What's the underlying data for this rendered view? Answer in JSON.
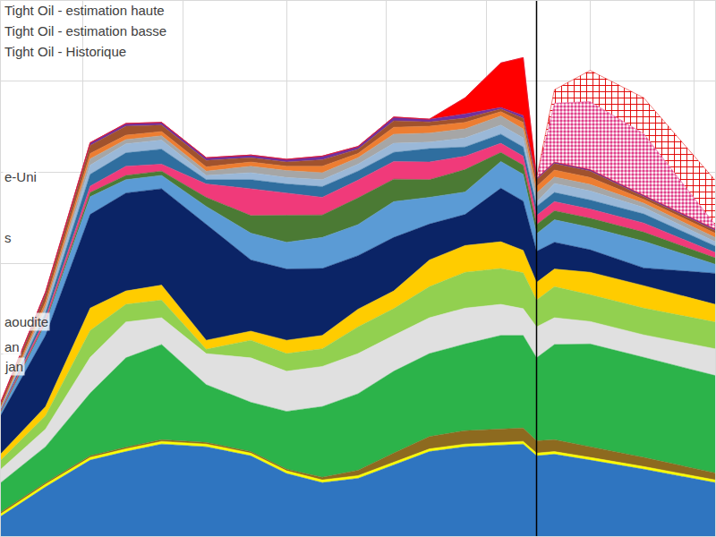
{
  "chart_data": {
    "type": "area",
    "stacked": true,
    "grid": true,
    "tick_labels": false,
    "x": [
      0,
      6.25,
      12.5,
      17.5,
      22.5,
      28.75,
      35,
      40,
      45,
      50,
      55,
      60,
      65,
      70,
      73.125,
      75,
      77.5,
      82.5,
      90,
      100
    ],
    "xlim": [
      0,
      100
    ],
    "xticks": [
      11.5,
      25.5,
      40,
      54,
      68,
      82.5,
      97
    ],
    "ylim": [
      0,
      100
    ],
    "yticks": [
      0,
      17,
      34,
      51,
      68,
      85
    ],
    "vline": 75,
    "annotations": [
      "e-Uni",
      "s",
      "aoudite",
      "an",
      "jan"
    ],
    "series": [
      {
        "color": "#2f75c0",
        "values": [
          3.7,
          9.2,
          14.2,
          15.8,
          17.2,
          16.7,
          15.0,
          11.7,
          10.0,
          10.8,
          13.3,
          15.8,
          16.7,
          17.0,
          17.2,
          15.0,
          15.3,
          14.2,
          12.5,
          10.0
        ]
      },
      {
        "color": "#ffff00",
        "values": [
          0.5,
          0.5,
          0.5,
          0.5,
          0.5,
          0.5,
          0.5,
          0.5,
          0.5,
          0.5,
          0.5,
          0.5,
          0.5,
          0.5,
          0.5,
          0.5,
          0.5,
          0.5,
          0.5,
          0.5
        ]
      },
      {
        "color": "#8d6a1f",
        "values": [
          0.3,
          0.3,
          0.3,
          0.3,
          0.3,
          0.3,
          0.3,
          0.3,
          0.5,
          1.0,
          1.7,
          2.3,
          2.5,
          2.5,
          2.5,
          2.3,
          2.2,
          2.0,
          1.7,
          1.3
        ]
      },
      {
        "color": "#2cb34a",
        "values": [
          5.5,
          6.7,
          11.7,
          16.7,
          17.8,
          10.8,
          9.2,
          10.8,
          13.2,
          14.3,
          15.3,
          15.5,
          16.2,
          17.5,
          17.3,
          15.5,
          17.8,
          19.2,
          18.7,
          18.2
        ]
      },
      {
        "color": "#e0e0e0",
        "values": [
          2.5,
          3.3,
          6.7,
          6.7,
          5.0,
          5.8,
          8.3,
          7.5,
          7.5,
          7.5,
          6.7,
          6.7,
          6.7,
          5.8,
          5.0,
          5.8,
          5.0,
          4.2,
          4.2,
          5.0
        ]
      },
      {
        "color": "#92d050",
        "values": [
          1.7,
          2.5,
          5.0,
          3.3,
          3.3,
          0.8,
          3.3,
          3.3,
          3.3,
          5.0,
          5.0,
          5.8,
          6.7,
          6.7,
          6.7,
          5.0,
          5.8,
          5.0,
          5.0,
          5.0
        ]
      },
      {
        "color": "#ffcc00",
        "values": [
          1.2,
          1.7,
          4.2,
          2.5,
          2.8,
          1.7,
          1.7,
          2.5,
          2.5,
          3.3,
          3.3,
          5.0,
          5.0,
          5.0,
          4.2,
          3.3,
          3.3,
          4.2,
          4.2,
          3.3
        ]
      },
      {
        "color": "#0b2466",
        "values": [
          7.2,
          13.3,
          17.5,
          18.3,
          18.0,
          21.7,
          13.3,
          13.3,
          12.5,
          10.0,
          10.0,
          6.7,
          5.8,
          10.0,
          9.2,
          5.8,
          5.0,
          4.2,
          3.3,
          5.8
        ]
      },
      {
        "color": "#5b9bd5",
        "values": [
          0.5,
          2.2,
          3.3,
          2.5,
          2.5,
          3.3,
          5.0,
          5.0,
          5.8,
          5.8,
          6.7,
          5.0,
          4.2,
          5.0,
          5.0,
          3.3,
          4.2,
          4.2,
          5.0,
          1.7
        ]
      },
      {
        "color": "#4b7a34",
        "values": [
          0.2,
          0.3,
          0.8,
          0.8,
          0.8,
          1.7,
          3.3,
          5.0,
          4.2,
          5.0,
          4.2,
          3.3,
          4.2,
          1.7,
          1.7,
          1.7,
          1.7,
          1.7,
          1.7,
          1.2
        ]
      },
      {
        "color": "#f03a7a",
        "values": [
          0.2,
          0.7,
          1.2,
          1.7,
          1.3,
          2.5,
          5.0,
          4.2,
          3.3,
          3.3,
          3.3,
          3.3,
          2.5,
          1.7,
          1.7,
          1.7,
          1.7,
          1.7,
          1.7,
          1.0
        ]
      },
      {
        "color": "#2f6e9f",
        "values": [
          0.2,
          1.0,
          2.2,
          2.5,
          2.8,
          0.8,
          1.7,
          1.7,
          2.0,
          1.7,
          1.7,
          2.5,
          1.7,
          1.7,
          1.7,
          1.7,
          1.7,
          1.7,
          1.7,
          1.2
        ]
      },
      {
        "color": "#9ab8d8",
        "values": [
          0.2,
          0.7,
          1.7,
          1.7,
          1.7,
          0.8,
          1.3,
          1.2,
          1.3,
          1.3,
          1.7,
          1.2,
          1.7,
          1.7,
          1.7,
          0.8,
          1.7,
          1.7,
          1.2,
          0.8
        ]
      },
      {
        "color": "#a6a6a6",
        "values": [
          0.2,
          0.7,
          1.2,
          0.8,
          0.8,
          0.8,
          1.2,
          1.3,
          1.3,
          1.2,
          1.7,
          1.7,
          1.7,
          1.7,
          1.7,
          1.7,
          1.2,
          1.2,
          0.8,
          0.8
        ]
      },
      {
        "color": "#ed7d31",
        "values": [
          0.2,
          0.7,
          1.0,
          0.8,
          0.8,
          0.8,
          0.8,
          0.8,
          1.2,
          0.8,
          1.3,
          1.3,
          1.2,
          0.8,
          1.2,
          1.2,
          1.3,
          1.3,
          0.7,
          0.8
        ]
      },
      {
        "color": "#a0522d",
        "values": [
          0.5,
          1.3,
          1.5,
          1.7,
          1.2,
          1.2,
          0.8,
          0.8,
          1.2,
          0.8,
          1.2,
          0.8,
          0.8,
          0.5,
          0.8,
          1.3,
          1.2,
          1.2,
          0.5,
          0.5
        ]
      },
      {
        "color": "#7030a0",
        "values": [
          0.3,
          0.5,
          0.5,
          0.5,
          0.5,
          0.5,
          0.5,
          0.5,
          0.7,
          0.5,
          0.7,
          0.5,
          0.8,
          0.3,
          0.5,
          0.3,
          0.3,
          0.3,
          0.3,
          0.3
        ]
      },
      {
        "name": "Tight Oil - Historique",
        "color": "#ff0000",
        "values": [
          0,
          0,
          0,
          0,
          0,
          0,
          0,
          0,
          0,
          0,
          0,
          0,
          3.0,
          8.3,
          10.8,
          0,
          0,
          0,
          0,
          0
        ]
      },
      {
        "name": "Tight Oil - estimation basse",
        "color": "#e0408a",
        "marker": "dots",
        "values": [
          0,
          0,
          0,
          0,
          0,
          0,
          0,
          0,
          0,
          0,
          0,
          0,
          0,
          0,
          0,
          0,
          11.0,
          12.7,
          11.5,
          0.8
        ]
      },
      {
        "name": "Tight Oil - estimation haute",
        "color": "#e00000",
        "marker": "crosshatch",
        "values": [
          0,
          0,
          0,
          0,
          0,
          0,
          0,
          0,
          0,
          0,
          0,
          0,
          0,
          0,
          0,
          0,
          2.5,
          5.8,
          6.7,
          8.3
        ]
      }
    ]
  }
}
